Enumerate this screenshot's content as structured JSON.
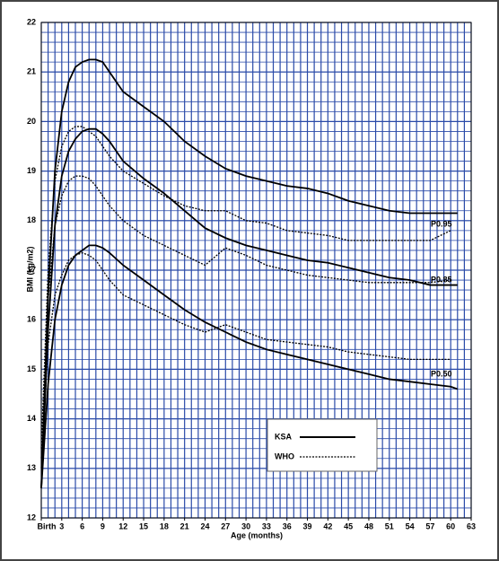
{
  "chart_data": {
    "type": "line",
    "x_label": "Age (months)",
    "y_label": "BMI (kg/m2)",
    "x": [
      0,
      1,
      2,
      3,
      4,
      5,
      6,
      7,
      8,
      9,
      10,
      12,
      15,
      18,
      21,
      24,
      27,
      30,
      33,
      36,
      39,
      42,
      45,
      48,
      51,
      54,
      57,
      60,
      61
    ],
    "series": [
      {
        "name": "KSA",
        "color": "#000000",
        "line_style": "solid",
        "lines": [
          [
            12.6,
            16.5,
            19.0,
            20.2,
            20.8,
            21.1,
            21.2,
            21.25,
            21.25,
            21.2,
            21.0,
            20.6,
            20.3,
            20.0,
            19.6,
            19.3,
            19.05,
            18.9,
            18.8,
            18.7,
            18.65,
            18.55,
            18.4,
            18.3,
            18.2,
            18.15,
            18.15,
            18.15,
            18.15
          ],
          [
            12.6,
            15.8,
            17.9,
            18.9,
            19.4,
            19.65,
            19.8,
            19.85,
            19.85,
            19.75,
            19.6,
            19.2,
            18.85,
            18.55,
            18.2,
            17.85,
            17.65,
            17.5,
            17.4,
            17.3,
            17.2,
            17.15,
            17.05,
            16.95,
            16.85,
            16.8,
            16.7,
            16.7,
            16.7
          ],
          [
            12.6,
            14.7,
            16.0,
            16.7,
            17.1,
            17.3,
            17.4,
            17.5,
            17.5,
            17.45,
            17.35,
            17.1,
            16.8,
            16.5,
            16.2,
            15.95,
            15.75,
            15.55,
            15.4,
            15.3,
            15.2,
            15.1,
            15.0,
            14.9,
            14.8,
            14.75,
            14.7,
            14.65,
            14.6
          ]
        ]
      },
      {
        "name": "WHO",
        "color": "#000000",
        "line_style": "dotted",
        "lines": [
          [
            13.4,
            17.0,
            18.8,
            19.5,
            19.8,
            19.9,
            19.9,
            19.8,
            19.7,
            19.5,
            19.3,
            19.0,
            18.75,
            18.5,
            18.3,
            18.2,
            18.2,
            18.0,
            17.95,
            17.8,
            17.75,
            17.7,
            17.6,
            17.6,
            17.6,
            17.6,
            17.6,
            17.8,
            null
          ],
          [
            13.2,
            16.4,
            17.9,
            18.5,
            18.8,
            18.9,
            18.9,
            18.85,
            18.7,
            18.5,
            18.3,
            18.0,
            17.7,
            17.5,
            17.3,
            17.1,
            17.45,
            17.3,
            17.1,
            17.0,
            16.9,
            16.85,
            16.8,
            16.75,
            16.75,
            16.75,
            16.75,
            16.8,
            null
          ],
          [
            13.0,
            15.5,
            16.5,
            16.9,
            17.2,
            17.3,
            17.35,
            17.3,
            17.2,
            17.0,
            16.8,
            16.5,
            16.3,
            16.1,
            15.9,
            15.75,
            15.9,
            15.75,
            15.6,
            15.55,
            15.5,
            15.45,
            15.35,
            15.3,
            15.25,
            15.2,
            15.2,
            15.2,
            null
          ]
        ]
      }
    ],
    "annotations": [
      "P0.95",
      "P0.85",
      "P0.50"
    ],
    "xlim": [
      0,
      63
    ],
    "ylim": [
      12,
      22
    ],
    "xticks": [
      {
        "value": 0,
        "label": "Birth"
      },
      3,
      6,
      9,
      12,
      15,
      18,
      21,
      24,
      27,
      30,
      33,
      36,
      39,
      42,
      45,
      48,
      51,
      54,
      57,
      60,
      63
    ],
    "yticks": [
      12,
      13,
      14,
      15,
      16,
      17,
      18,
      19,
      20,
      21,
      22
    ],
    "grid": true,
    "grid_color": "#2a4aa8",
    "legend": "lower right"
  }
}
